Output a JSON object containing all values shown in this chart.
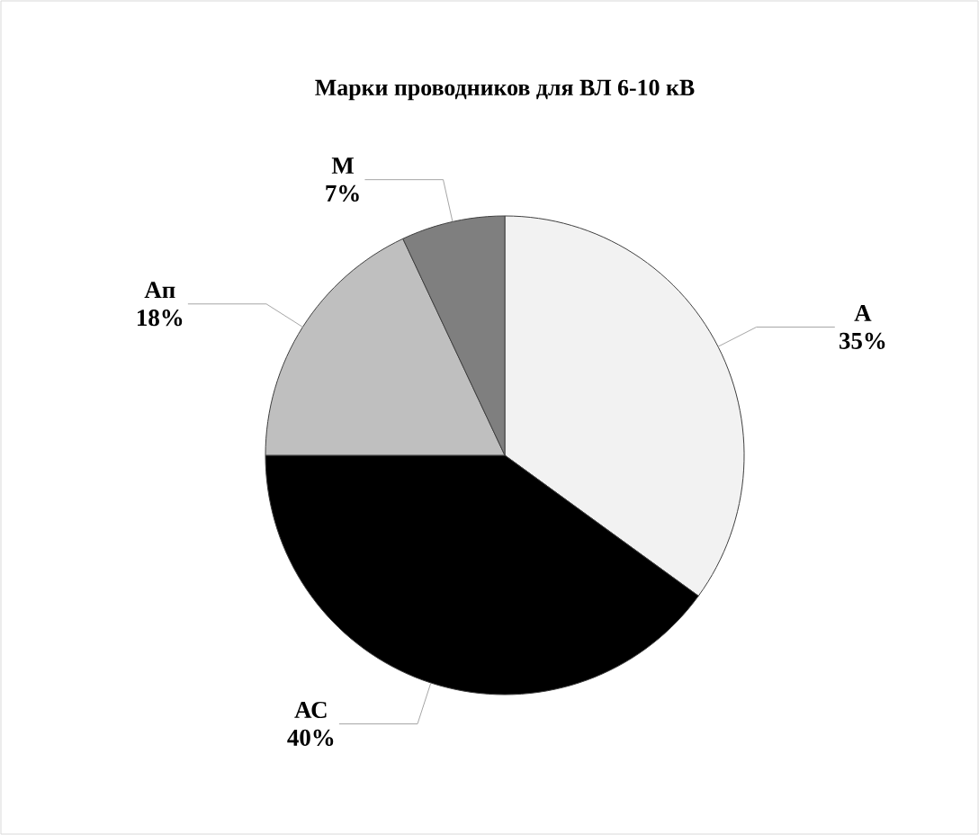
{
  "chart_data": {
    "type": "pie",
    "title": "Марки проводников для ВЛ 6-10 кВ",
    "categories": [
      "А",
      "АС",
      "Ап",
      "М"
    ],
    "values": [
      35,
      40,
      18,
      7
    ],
    "value_labels": [
      "35%",
      "40%",
      "18%",
      "7%"
    ],
    "colors": [
      "#f2f2f2",
      "#000000",
      "#bfbfbf",
      "#7f7f7f"
    ]
  }
}
